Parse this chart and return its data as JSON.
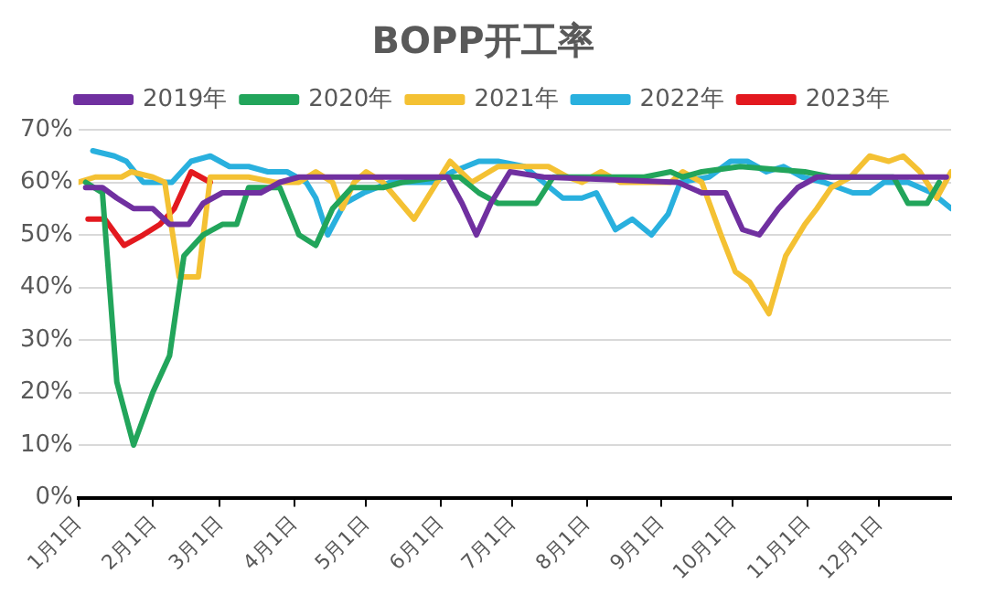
{
  "chart_data": {
    "type": "line",
    "title": "BOPP开工率",
    "xlim": [
      "--01-01",
      "--12-31"
    ],
    "xticks": [
      {
        "value": "--01-01",
        "label": "1月1日"
      },
      {
        "value": "--02-01",
        "label": "2月1日"
      },
      {
        "value": "--03-01",
        "label": "3月1日"
      },
      {
        "value": "--04-01",
        "label": "4月1日"
      },
      {
        "value": "--05-01",
        "label": "5月1日"
      },
      {
        "value": "--06-01",
        "label": "6月1日"
      },
      {
        "value": "--07-01",
        "label": "7月1日"
      },
      {
        "value": "--08-01",
        "label": "8月1日"
      },
      {
        "value": "--09-01",
        "label": "9月1日"
      },
      {
        "value": "--10-01",
        "label": "10月1日"
      },
      {
        "value": "--11-01",
        "label": "11月1日"
      },
      {
        "value": "--12-01",
        "label": "12月1日"
      }
    ],
    "ylim": [
      0,
      70
    ],
    "yticks": [
      {
        "value": 0,
        "label": "0%"
      },
      {
        "value": 10,
        "label": "10%"
      },
      {
        "value": 20,
        "label": "20%"
      },
      {
        "value": 30,
        "label": "30%"
      },
      {
        "value": 40,
        "label": "40%"
      },
      {
        "value": 50,
        "label": "50%"
      },
      {
        "value": 60,
        "label": "60%"
      },
      {
        "value": 70,
        "label": "70%"
      }
    ],
    "grid": "y",
    "legend": "top",
    "marker": "none",
    "line_style": "solid",
    "series": [
      {
        "name": "2019年",
        "color": "#7030a0",
        "x": [
          "--01-04",
          "--01-11",
          "--01-17",
          "--01-24",
          "--02-01",
          "--02-08",
          "--02-16",
          "--02-22",
          "--03-02",
          "--03-18",
          "--03-26",
          "--04-03",
          "--06-04",
          "--06-10",
          "--06-16",
          "--06-22",
          "--06-30",
          "--07-14",
          "--09-08",
          "--09-18",
          "--09-28",
          "--10-05",
          "--10-12",
          "--10-20",
          "--10-28",
          "--11-05",
          "--12-29"
        ],
        "values": [
          59,
          59,
          57,
          55,
          55,
          52,
          52,
          56,
          58,
          58,
          60,
          61,
          61,
          56,
          50,
          56,
          62,
          61,
          60,
          58,
          58,
          51,
          50,
          55,
          59,
          61,
          61
        ]
      },
      {
        "name": "2020年",
        "color": "#22a55b",
        "x": [
          "--01-04",
          "--01-11",
          "--01-17",
          "--01-24",
          "--02-01",
          "--02-08",
          "--02-14",
          "--02-22",
          "--03-02",
          "--03-08",
          "--03-13",
          "--03-26",
          "--04-03",
          "--04-10",
          "--04-17",
          "--04-25",
          "--05-08",
          "--05-16",
          "--06-01",
          "--06-09",
          "--06-17",
          "--06-25",
          "--07-11",
          "--07-18",
          "--08-25",
          "--09-05",
          "--09-10",
          "--09-18",
          "--10-04",
          "--10-31",
          "--11-11",
          "--12-07",
          "--12-13",
          "--12-21",
          "--12-26"
        ],
        "values": [
          60,
          58,
          22,
          10,
          20,
          27,
          46,
          50,
          52,
          52,
          59,
          59,
          50,
          48,
          55,
          59,
          59,
          60,
          61,
          61,
          58,
          56,
          56,
          61,
          61,
          62,
          61,
          62,
          63,
          62,
          61,
          61,
          56,
          56,
          60
        ]
      },
      {
        "name": "2021年",
        "color": "#f4c133",
        "x": [
          "--01-01",
          "--01-08",
          "--01-19",
          "--01-23",
          "--02-01",
          "--02-06",
          "--02-12",
          "--02-20",
          "--02-25",
          "--03-13",
          "--03-24",
          "--04-03",
          "--04-10",
          "--04-17",
          "--04-21",
          "--04-26",
          "--05-01",
          "--05-08",
          "--05-21",
          "--06-05",
          "--06-14",
          "--06-25",
          "--07-16",
          "--07-24",
          "--07-30",
          "--08-07",
          "--08-15",
          "--09-05",
          "--09-10",
          "--09-18",
          "--09-26",
          "--10-02",
          "--10-08",
          "--10-16",
          "--10-23",
          "--10-31",
          "--11-05",
          "--11-11",
          "--11-19",
          "--11-27",
          "--12-05",
          "--12-11",
          "--12-18",
          "--12-25",
          "--12-31"
        ],
        "values": [
          60,
          61,
          61,
          62,
          61,
          60,
          42,
          42,
          61,
          61,
          60,
          60,
          62,
          60,
          55,
          60,
          62,
          60,
          53,
          64,
          60,
          63,
          63,
          61,
          60,
          62,
          60,
          60,
          62,
          60,
          50,
          43,
          41,
          35,
          46,
          52,
          55,
          59,
          61,
          65,
          64,
          65,
          62,
          57,
          62
        ]
      },
      {
        "name": "2022年",
        "color": "#29b0de",
        "x": [
          "--01-07",
          "--01-16",
          "--01-21",
          "--01-28",
          "--02-09",
          "--02-17",
          "--02-25",
          "--03-05",
          "--03-13",
          "--03-21",
          "--03-29",
          "--04-06",
          "--04-10",
          "--04-15",
          "--04-22",
          "--04-30",
          "--05-11",
          "--05-29",
          "--06-06",
          "--06-17",
          "--06-25",
          "--07-06",
          "--07-14",
          "--07-22",
          "--07-30",
          "--08-05",
          "--08-13",
          "--08-20",
          "--08-28",
          "--09-04",
          "--09-09",
          "--09-21",
          "--09-30",
          "--10-07",
          "--10-15",
          "--10-22",
          "--10-30",
          "--11-08",
          "--11-20",
          "--11-27",
          "--12-03",
          "--12-13",
          "--12-23",
          "--12-31"
        ],
        "values": [
          66,
          65,
          64,
          60,
          60,
          64,
          65,
          63,
          63,
          62,
          62,
          60,
          57,
          50,
          56,
          58,
          60,
          60,
          62,
          64,
          64,
          63,
          60,
          57,
          57,
          58,
          51,
          53,
          50,
          54,
          60,
          61,
          64,
          64,
          62,
          63,
          61,
          60,
          58,
          58,
          60,
          60,
          58,
          55
        ]
      },
      {
        "name": "2023年",
        "color": "#e3191f",
        "x": [
          "--01-05",
          "--01-12",
          "--01-20",
          "--01-28",
          "--02-04",
          "--02-10",
          "--02-17",
          "--02-25"
        ],
        "values": [
          53,
          53,
          48,
          50,
          52,
          55,
          62,
          60
        ]
      }
    ]
  }
}
